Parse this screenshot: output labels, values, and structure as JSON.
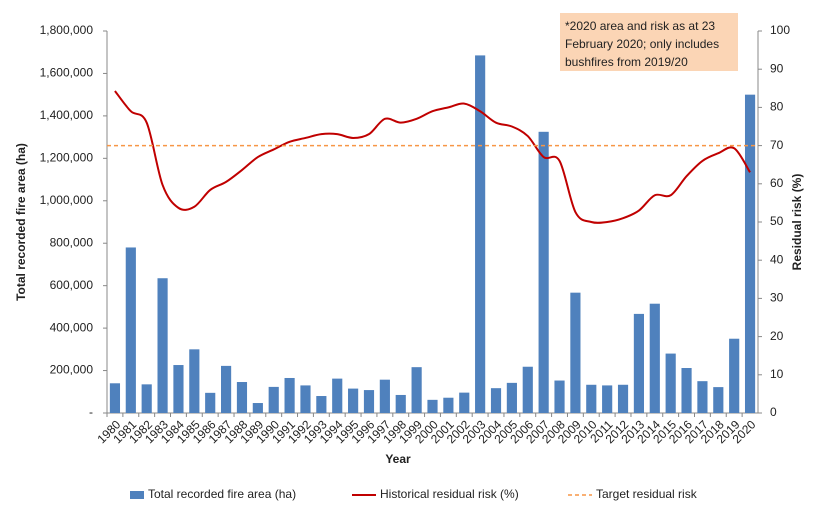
{
  "chart_data": {
    "type": "bar",
    "x_label": "Year",
    "y_label": "Total recorded fire area (ha)",
    "y2_label": "Residual risk (%)",
    "annotation": "*2020 area and risk as at 23 February 2020; only includes bushfires from 2019/20",
    "categories": [
      "1980",
      "1981",
      "1982",
      "1983",
      "1984",
      "1985",
      "1986",
      "1987",
      "1988",
      "1989",
      "1990",
      "1991",
      "1992",
      "1993",
      "1994",
      "1995",
      "1996",
      "1997",
      "1998",
      "1999",
      "2000",
      "2001",
      "2002",
      "2003",
      "2004",
      "2005",
      "2006",
      "2007",
      "2008",
      "2009",
      "2010",
      "2011",
      "2012",
      "2013",
      "2014",
      "2015",
      "2016",
      "2017",
      "2018",
      "2019",
      "2020"
    ],
    "ylim": [
      0,
      1800000
    ],
    "yticks": [
      {
        "value": 0,
        "label": "-"
      },
      {
        "value": 200000,
        "label": "200,000"
      },
      {
        "value": 400000,
        "label": "400,000"
      },
      {
        "value": 600000,
        "label": "600,000"
      },
      {
        "value": 800000,
        "label": "800,000"
      },
      {
        "value": 1000000,
        "label": "1,000,000"
      },
      {
        "value": 1200000,
        "label": "1,200,000"
      },
      {
        "value": 1400000,
        "label": "1,400,000"
      },
      {
        "value": 1600000,
        "label": "1,600,000"
      },
      {
        "value": 1800000,
        "label": "1,800,000"
      }
    ],
    "y2lim": [
      0,
      100
    ],
    "y2ticks": [
      0,
      10,
      20,
      30,
      40,
      50,
      60,
      70,
      80,
      90,
      100
    ],
    "legend": "bottom",
    "series": [
      {
        "name": "Total recorded fire area (ha)",
        "type": "bar",
        "color": "#4f81bd",
        "values": [
          140000,
          780000,
          135000,
          635000,
          226000,
          300000,
          95000,
          222000,
          146000,
          47000,
          123000,
          165000,
          130000,
          80000,
          162000,
          115000,
          108000,
          157000,
          85000,
          216000,
          62000,
          72000,
          96000,
          1685000,
          117000,
          142000,
          218000,
          1325000,
          153000,
          567000,
          133000,
          130000,
          133000,
          467000,
          515000,
          280000,
          212000,
          150000,
          122000,
          350000,
          1500000
        ]
      },
      {
        "name": "Historical residual risk (%)",
        "type": "line",
        "axis": "y2",
        "color": "#c00000",
        "values": [
          84.3,
          79,
          76,
          59.7,
          53.7,
          54,
          58.4,
          60.5,
          63.6,
          67,
          69,
          71,
          72,
          73,
          73,
          72,
          73,
          77,
          76,
          77,
          79,
          80,
          81,
          79,
          76,
          75,
          72.5,
          67,
          66,
          52.6,
          50,
          50,
          51,
          53,
          57,
          57,
          62,
          66,
          68,
          69.3,
          63
        ]
      }
    ],
    "target": {
      "name": "Target residual risk",
      "value": 70,
      "axis": "y2",
      "color": "#f79646"
    }
  }
}
